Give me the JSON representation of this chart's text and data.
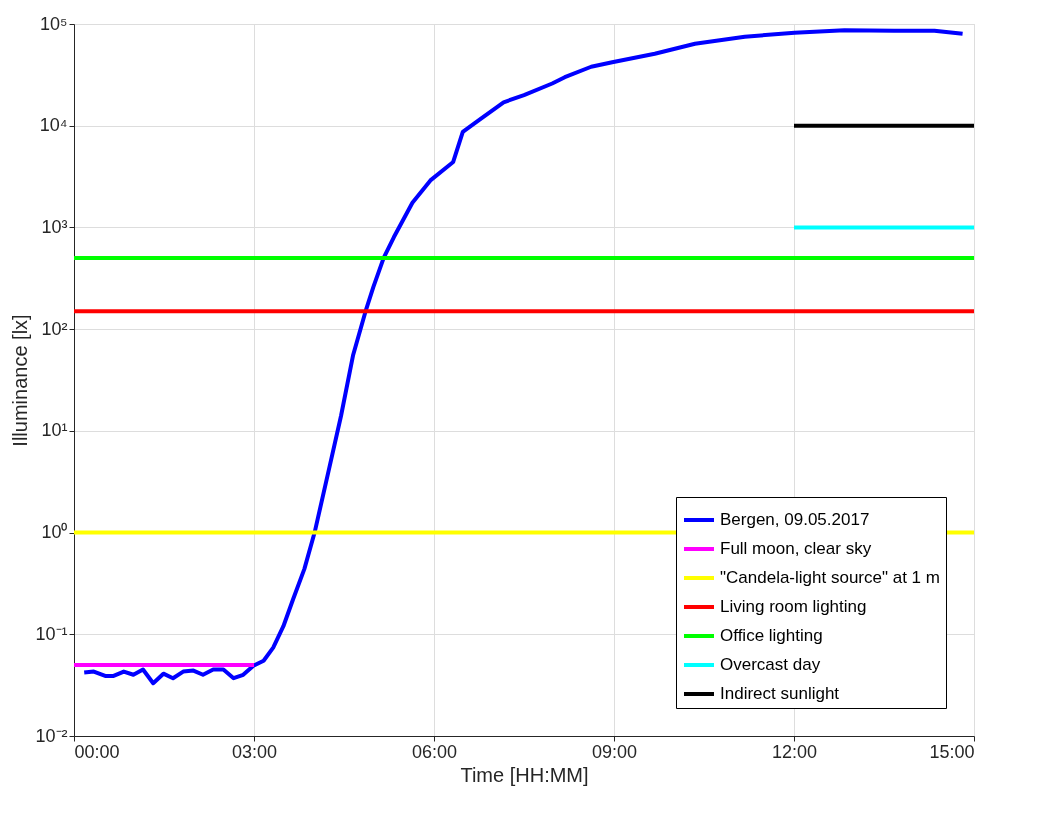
{
  "chart_data": {
    "type": "line",
    "xlabel": "Time [HH:MM]",
    "ylabel": "Illuminance [lx]",
    "log": "y",
    "grid": true,
    "legend": "bottom right",
    "line_style": "solid",
    "xlim": [
      0,
      15
    ],
    "xticks": [
      {
        "value": 0,
        "label": "00:00"
      },
      {
        "value": 3,
        "label": "03:00"
      },
      {
        "value": 6,
        "label": "06:00"
      },
      {
        "value": 9,
        "label": "09:00"
      },
      {
        "value": 12,
        "label": "12:00"
      },
      {
        "value": 15,
        "label": "15:00"
      }
    ],
    "ylim": [
      0.01,
      100000
    ],
    "yticks": [
      {
        "value": 0.01,
        "label": "10⁻²"
      },
      {
        "value": 0.1,
        "label": "10⁻¹"
      },
      {
        "value": 1,
        "label": "10⁰"
      },
      {
        "value": 10,
        "label": "10¹"
      },
      {
        "value": 100,
        "label": "10²"
      },
      {
        "value": 1000,
        "label": "10³"
      },
      {
        "value": 10000,
        "label": "10⁴"
      },
      {
        "value": 100000,
        "label": "10⁵"
      }
    ],
    "series": [
      {
        "name": "Bergen, 09.05.2017",
        "color": "#0000ff",
        "x": [
          0.17,
          0.33,
          0.52,
          0.66,
          0.83,
          0.99,
          1.15,
          1.32,
          1.49,
          1.65,
          1.82,
          1.99,
          2.15,
          2.32,
          2.49,
          2.66,
          2.82,
          2.99,
          3.16,
          3.32,
          3.49,
          3.65,
          3.84,
          4.01,
          4.25,
          4.45,
          4.65,
          4.86,
          4.99,
          5.16,
          5.33,
          5.64,
          5.94,
          6.32,
          6.48,
          6.76,
          7.16,
          7.5,
          7.97,
          8.18,
          8.62,
          8.97,
          9.68,
          10.35,
          11.18,
          12.01,
          12.84,
          13.67,
          14.34,
          14.81
        ],
        "values": [
          0.042,
          0.043,
          0.039,
          0.039,
          0.043,
          0.04,
          0.045,
          0.033,
          0.041,
          0.037,
          0.043,
          0.044,
          0.04,
          0.045,
          0.045,
          0.037,
          0.04,
          0.049,
          0.055,
          0.074,
          0.12,
          0.22,
          0.44,
          1.0,
          4.2,
          14,
          55,
          150,
          260,
          500,
          800,
          1750,
          2900,
          4400,
          8700,
          11500,
          17000,
          20000,
          26000,
          30000,
          38000,
          42000,
          51000,
          64000,
          75000,
          82000,
          87000,
          86000,
          86000,
          80000
        ]
      },
      {
        "name": "Full moon, clear sky",
        "color": "#ff00ff",
        "x": [
          0,
          3
        ],
        "values": [
          0.05,
          0.05
        ]
      },
      {
        "name": "\"Candela-light source\" at 1 m",
        "color": "#ffff00",
        "x": [
          0,
          15
        ],
        "values": [
          1,
          1
        ]
      },
      {
        "name": "Living room lighting",
        "color": "#ff0000",
        "x": [
          0,
          15
        ],
        "values": [
          150,
          150
        ]
      },
      {
        "name": "Office lighting",
        "color": "#00ff00",
        "x": [
          0,
          15
        ],
        "values": [
          500,
          500
        ]
      },
      {
        "name": "Overcast day",
        "color": "#00ffff",
        "x": [
          12,
          15
        ],
        "values": [
          1000,
          1000
        ]
      },
      {
        "name": "Indirect sunlight",
        "color": "#000000",
        "x": [
          12,
          15
        ],
        "values": [
          10000,
          10000
        ]
      }
    ]
  }
}
